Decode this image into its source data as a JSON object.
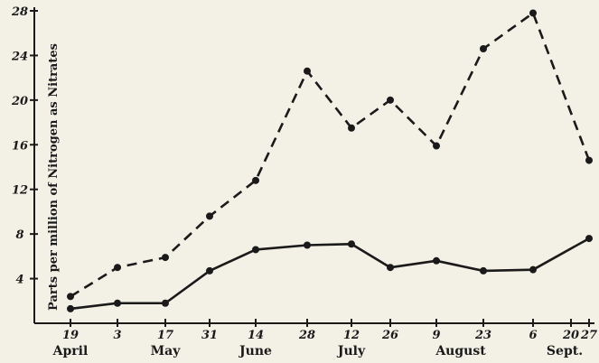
{
  "chart_data": {
    "type": "line",
    "title": "",
    "xlabel": "",
    "ylabel": "Parts per million of Nitrogen as Nitrates",
    "ylim": [
      0,
      28
    ],
    "yticks": [
      4,
      8,
      12,
      16,
      20,
      24,
      28
    ],
    "grid": false,
    "x_tick_labels": [
      "19",
      "3",
      "17",
      "31",
      "14",
      "28",
      "12",
      "26",
      "9",
      "23",
      "6",
      "20",
      "27"
    ],
    "month_labels": [
      "April",
      "May",
      "June",
      "July",
      "August",
      "Sept."
    ],
    "series": [
      {
        "style": "dashed",
        "x": [
          "April 19",
          "May 3",
          "May 17",
          "May 31",
          "June 14",
          "June 28",
          "July 12",
          "July 26",
          "August 9",
          "August 23",
          "Sept. 6",
          "Sept. 27"
        ],
        "values": [
          2.4,
          5.0,
          5.9,
          9.6,
          12.8,
          22.6,
          17.5,
          20.0,
          15.9,
          24.6,
          27.8,
          14.6
        ]
      },
      {
        "style": "solid",
        "x": [
          "April 19",
          "May 3",
          "May 17",
          "May 31",
          "June 14",
          "June 28",
          "July 12",
          "July 26",
          "August 9",
          "August 23",
          "Sept. 6",
          "Sept. 27"
        ],
        "values": [
          1.3,
          1.8,
          1.8,
          4.7,
          6.6,
          7.0,
          7.1,
          5.0,
          5.6,
          4.7,
          4.8,
          7.6
        ]
      }
    ]
  },
  "colors": {
    "ink": "#1a1a1a",
    "paper": "#f3f0e6"
  }
}
